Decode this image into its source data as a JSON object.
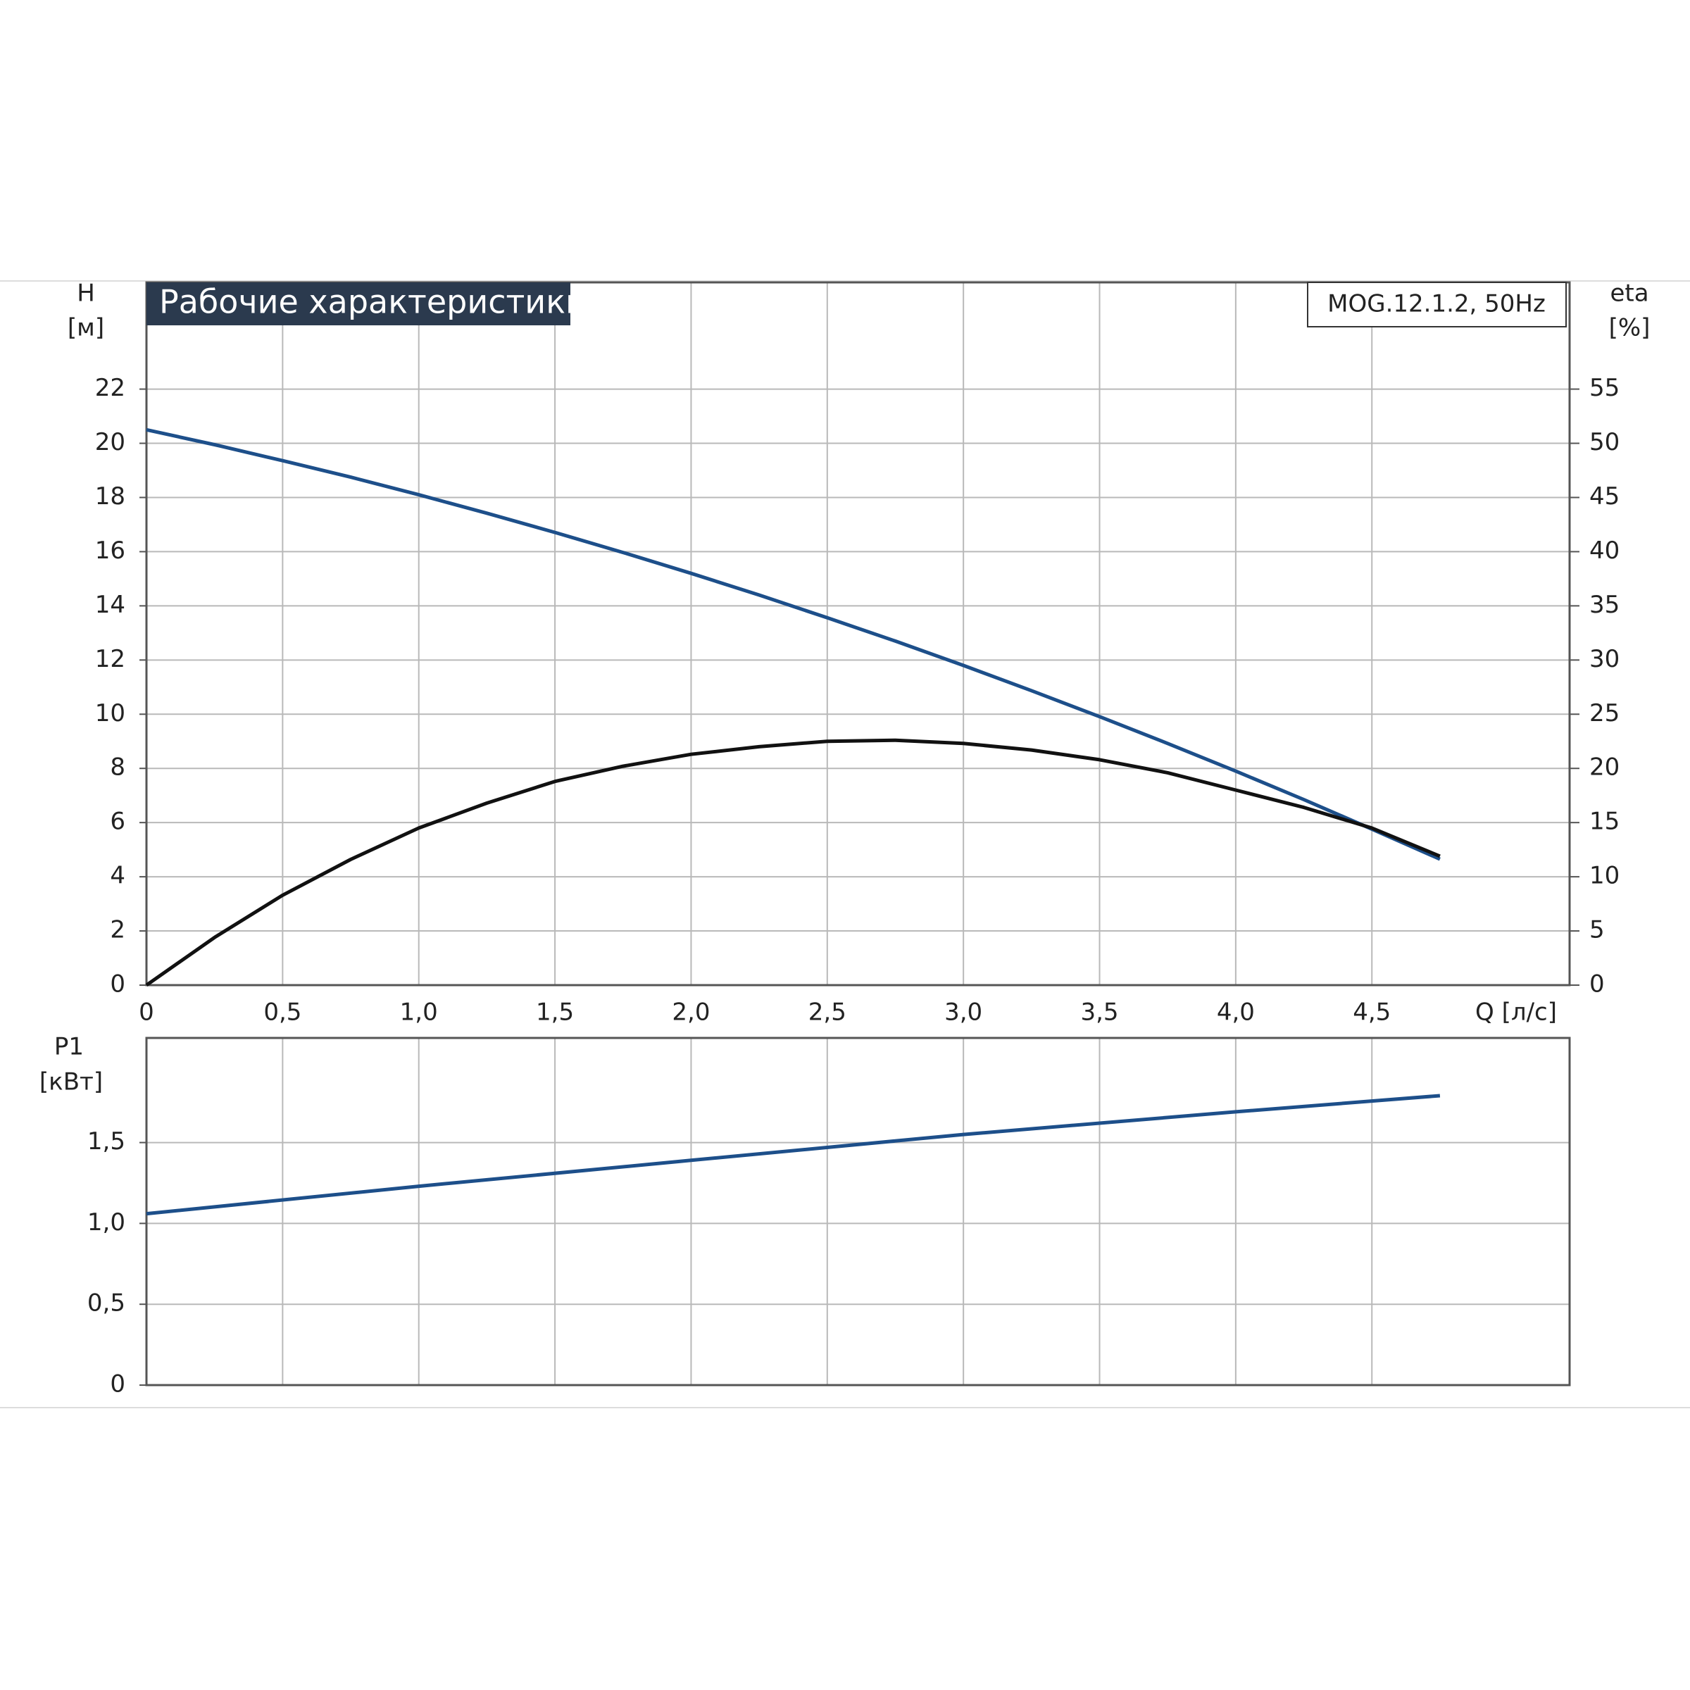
{
  "chart_data": [
    {
      "type": "line",
      "title": "Рабочие характеристики",
      "subtitle": "MOG.12.1.2, 50Hz",
      "ylabel": "H",
      "yunit": "[м]",
      "y2label": "eta",
      "y2unit": "[%]",
      "xlabel": "Q [л/с]",
      "x": [
        0,
        0.25,
        0.5,
        0.75,
        1,
        1.25,
        1.5,
        1.75,
        2,
        2.25,
        2.5,
        2.75,
        3,
        3.25,
        3.5,
        3.75,
        4,
        4.25,
        4.5,
        4.75
      ],
      "series": [
        {
          "color": "#1d4f8a",
          "values": [
            20.5,
            19.95,
            19.36,
            18.75,
            18.1,
            17.42,
            16.71,
            15.97,
            15.2,
            14.4,
            13.56,
            12.7,
            11.8,
            10.87,
            9.91,
            8.92,
            7.9,
            6.85,
            5.76,
            4.65
          ]
        },
        {
          "color": "#111111",
          "axis": "y2",
          "values": [
            0,
            4.4,
            8.3,
            11.6,
            14.5,
            16.8,
            18.8,
            20.2,
            21.3,
            22.0,
            22.5,
            22.6,
            22.3,
            21.7,
            20.8,
            19.6,
            18.0,
            16.4,
            14.5,
            11.9
          ]
        }
      ],
      "xlim": [
        0,
        5.226
      ],
      "xticks": [
        0,
        {
          "value": 0.5,
          "label": "0,5"
        },
        {
          "value": 1,
          "label": "1,0"
        },
        {
          "value": 1.5,
          "label": "1,5"
        },
        {
          "value": 2,
          "label": "2,0"
        },
        {
          "value": 2.5,
          "label": "2,5"
        },
        {
          "value": 3,
          "label": "3,0"
        },
        {
          "value": 3.5,
          "label": "3,5"
        },
        {
          "value": 4,
          "label": "4,0"
        },
        {
          "value": 4.5,
          "label": "4,5"
        }
      ],
      "ylim": [
        0,
        25.94
      ],
      "yticks": [
        0,
        2,
        4,
        6,
        8,
        10,
        12,
        14,
        16,
        18,
        20,
        22
      ],
      "y2lim": [
        0,
        64.85
      ],
      "y2ticks": [
        0,
        5,
        10,
        15,
        20,
        25,
        30,
        35,
        40,
        45,
        50,
        55
      ],
      "grid": true
    },
    {
      "type": "line",
      "ylabel": "P1",
      "yunit": "[кВт]",
      "x": [
        0,
        1,
        2,
        3,
        4,
        4.75
      ],
      "series": [
        {
          "color": "#1d4f8a",
          "values": [
            1.06,
            1.23,
            1.39,
            1.55,
            1.69,
            1.79
          ]
        }
      ],
      "xlim": [
        0,
        5.226
      ],
      "ylim": [
        0,
        2.147
      ],
      "yticks": [
        0,
        {
          "value": 0.5,
          "label": "0,5"
        },
        {
          "value": 1,
          "label": "1,0"
        },
        {
          "value": 1.5,
          "label": "1,5"
        }
      ],
      "grid": true
    }
  ]
}
